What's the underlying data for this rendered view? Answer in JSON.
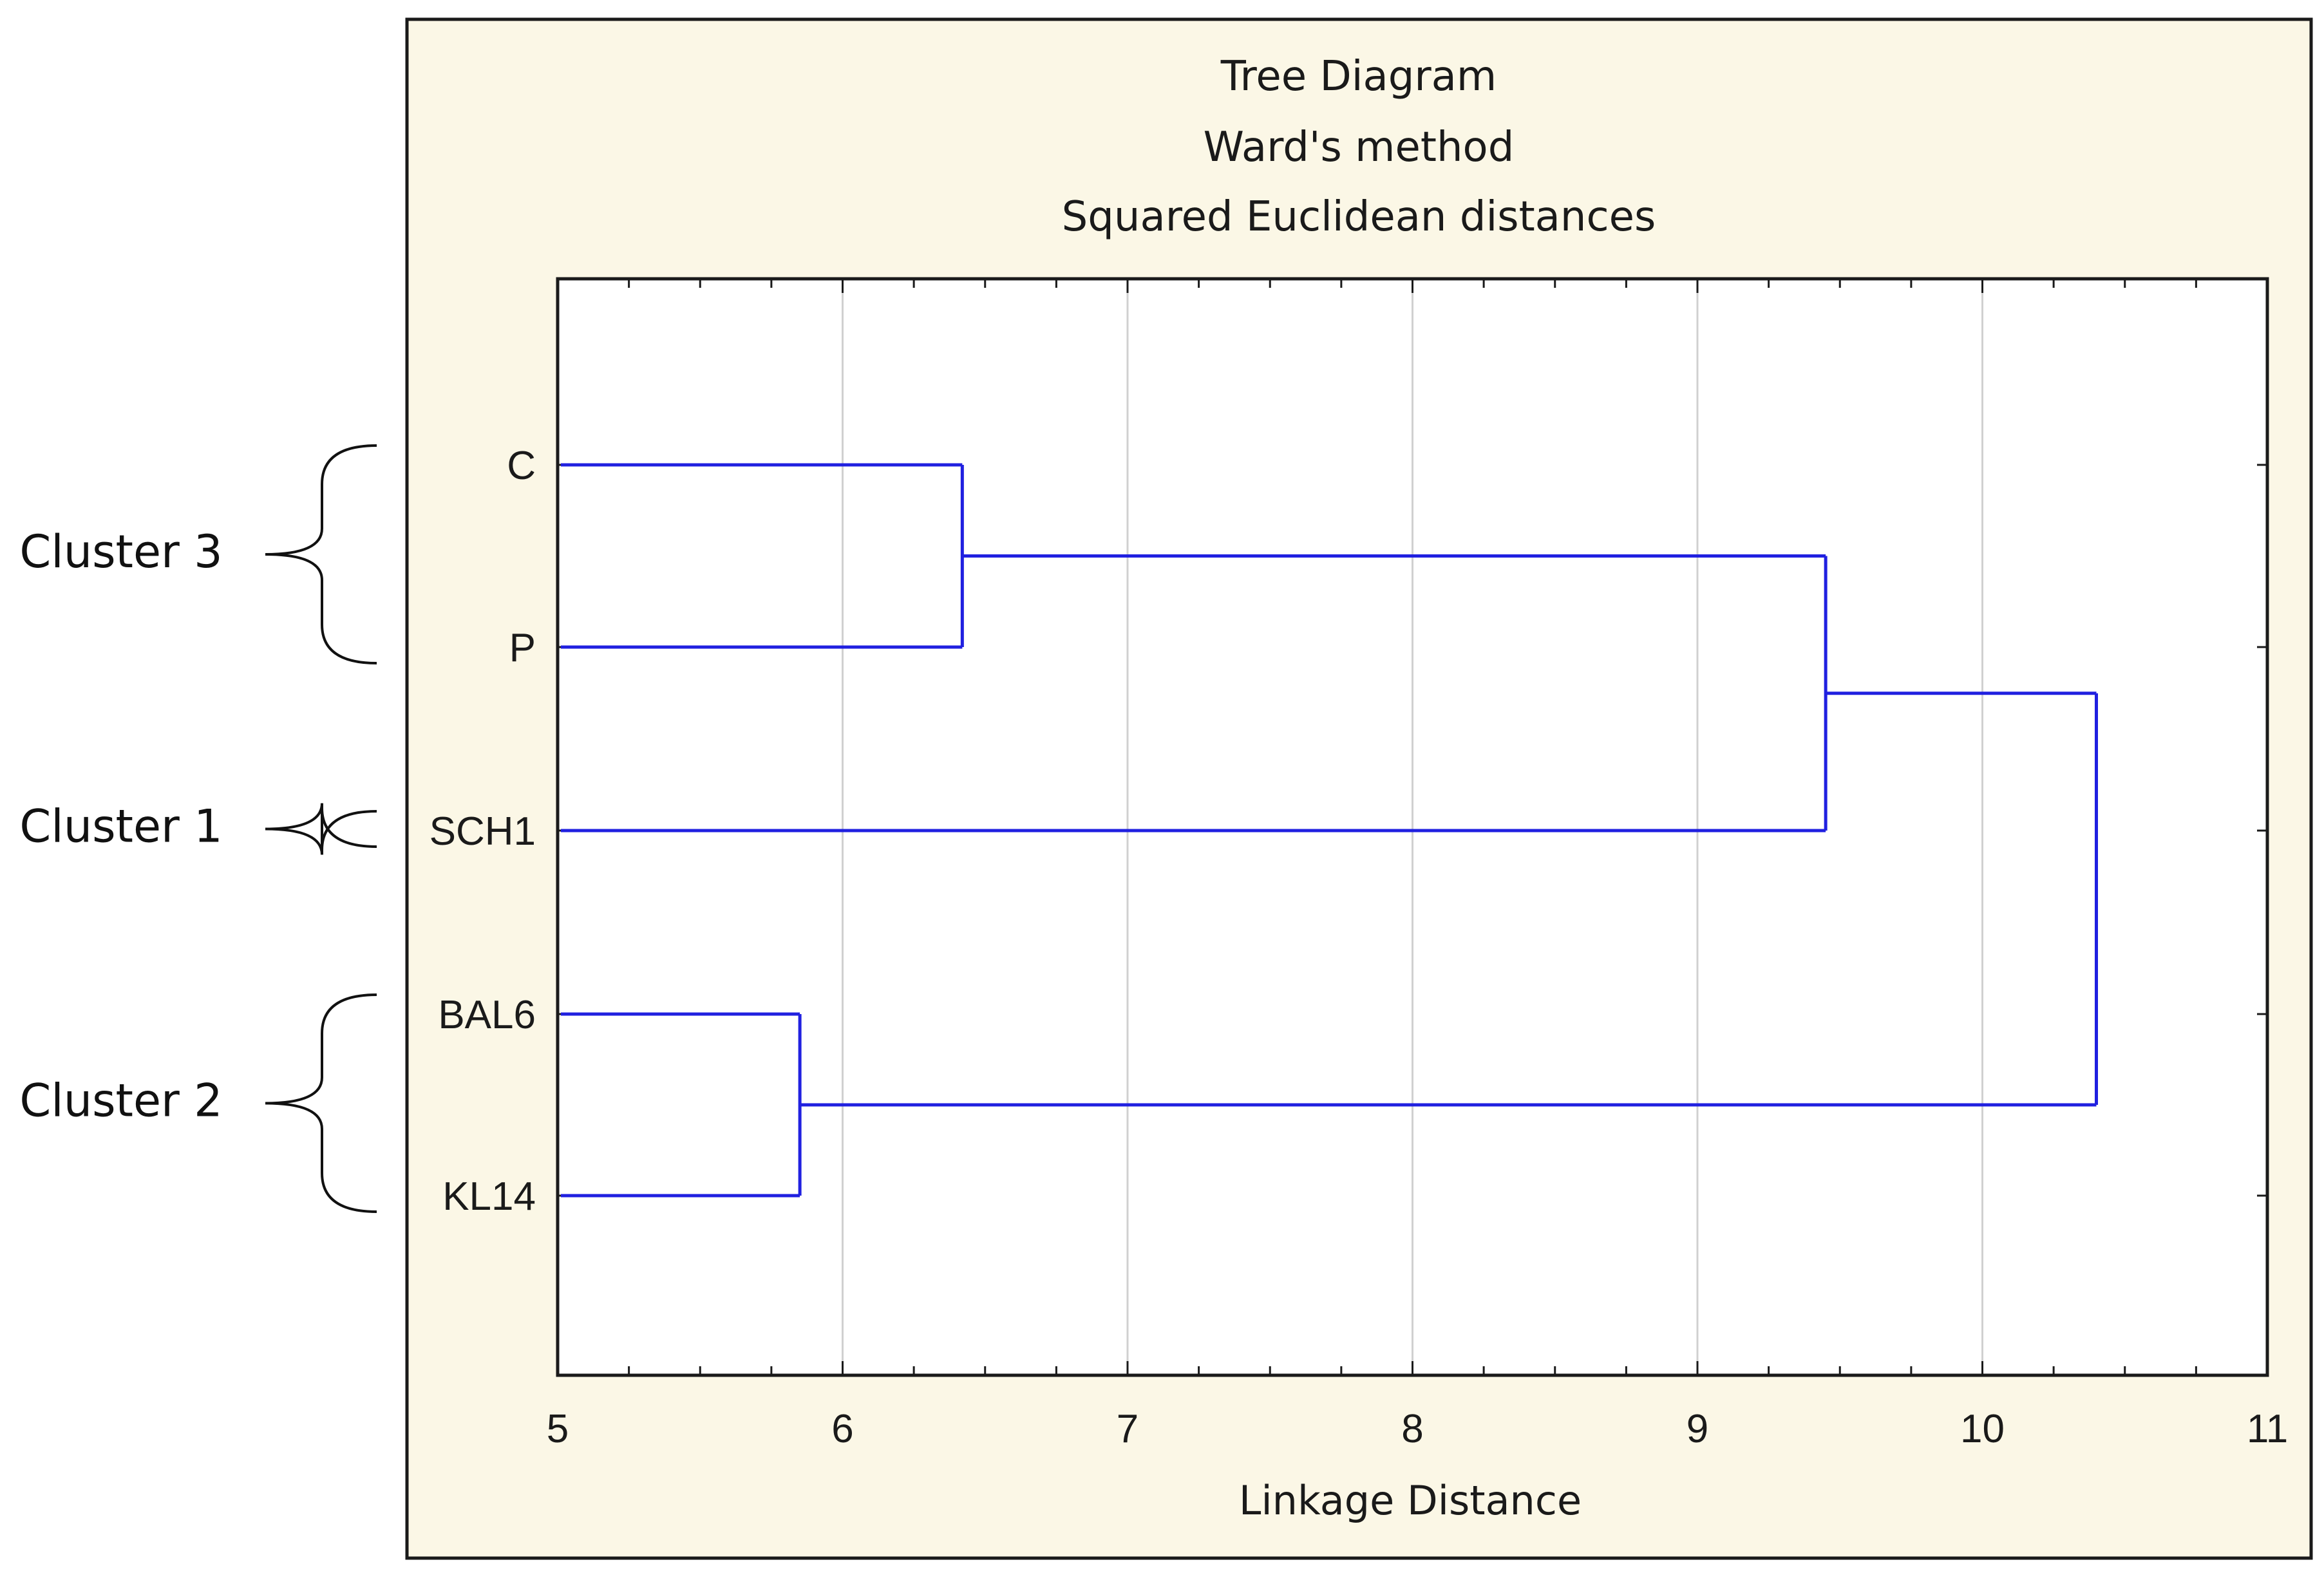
{
  "colors": {
    "panel_background": "#fbf7e6",
    "frame": "#1a1a1a",
    "grid": "#d0d0d0",
    "link": "#2020e0",
    "bracket": "#111111"
  },
  "chart_data": {
    "type": "dendrogram",
    "title_lines": [
      "Tree Diagram",
      "Ward's method",
      "Squared Euclidean distances"
    ],
    "xlabel": "Linkage Distance",
    "ylabel": "",
    "xlim": [
      5,
      11
    ],
    "x_ticks": [
      5,
      6,
      7,
      8,
      9,
      10,
      11
    ],
    "grid": "vertical",
    "leaves": [
      "C",
      "P",
      "SCH1",
      "BAL6",
      "KL14"
    ],
    "merges": [
      {
        "id": "m1",
        "children": [
          "BAL6",
          "KL14"
        ],
        "distance": 5.85
      },
      {
        "id": "m2",
        "children": [
          "C",
          "P"
        ],
        "distance": 6.42
      },
      {
        "id": "m3",
        "children": [
          "m2",
          "SCH1"
        ],
        "distance": 9.45
      },
      {
        "id": "m4",
        "children": [
          "m3",
          "m1"
        ],
        "distance": 10.4
      }
    ],
    "annotations": [
      {
        "label": "Cluster 3",
        "members": [
          "C",
          "P"
        ]
      },
      {
        "label": "Cluster 1",
        "members": [
          "SCH1"
        ]
      },
      {
        "label": "Cluster 2",
        "members": [
          "BAL6",
          "KL14"
        ]
      }
    ]
  }
}
